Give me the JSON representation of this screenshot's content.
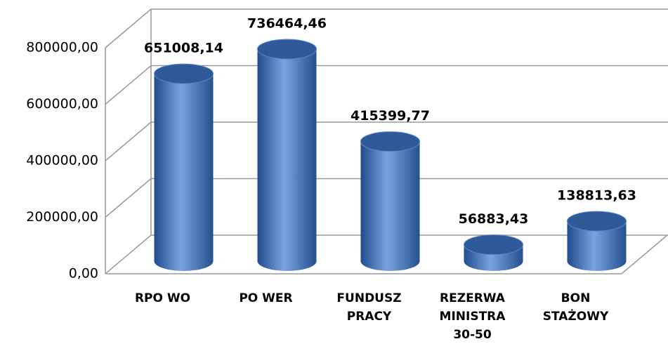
{
  "chart_data": {
    "type": "bar3d",
    "categories": [
      "RPO WO",
      "PO WER",
      "FUNDUSZ\nPRACY",
      "REZERWA\nMINISTRA\n30-50",
      "BON\nSTAŻOWY"
    ],
    "values": [
      651008.14,
      736464.46,
      415399.77,
      56883.43,
      138813.63
    ],
    "value_labels": [
      "651008,14",
      "736464,46",
      "415399,77",
      "56883,43",
      "138813,63"
    ],
    "color": "#3f6fb5",
    "ylim": [
      0,
      800000
    ],
    "yticks": [
      {
        "value": 0,
        "label": "0,00"
      },
      {
        "value": 200000,
        "label": "200000,00"
      },
      {
        "value": 400000,
        "label": "400000,00"
      },
      {
        "value": 600000,
        "label": "600000,00"
      },
      {
        "value": 800000,
        "label": "800000,00"
      }
    ],
    "grid": true
  }
}
